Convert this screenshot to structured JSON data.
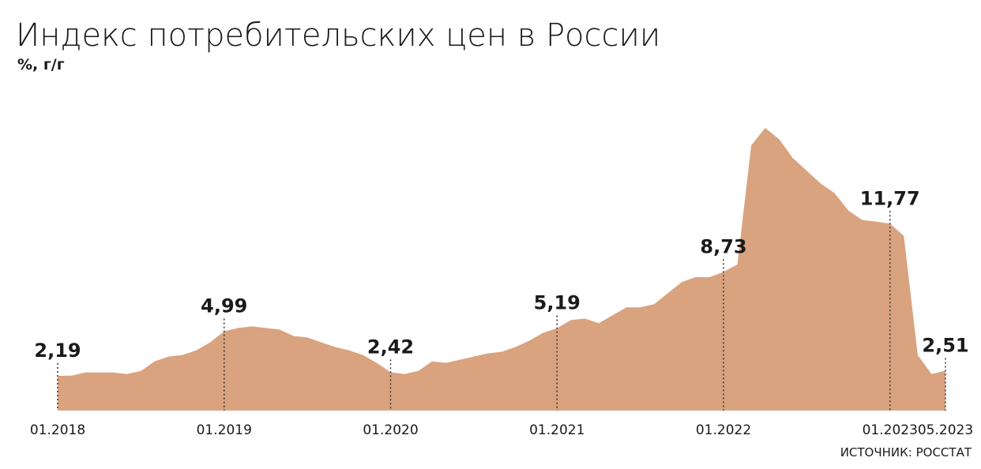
{
  "chart_data": {
    "type": "area",
    "title": "Индекс потребительских цен в России",
    "subtitle": "%, г/г",
    "source": "ИСТОЧНИК: РОССТАТ",
    "color": "#d9a37f",
    "categories": [
      "01.2018",
      null,
      null,
      null,
      null,
      null,
      null,
      null,
      null,
      null,
      null,
      null,
      "01.2019",
      null,
      null,
      null,
      null,
      null,
      null,
      null,
      null,
      null,
      null,
      null,
      "01.2020",
      null,
      null,
      null,
      null,
      null,
      null,
      null,
      null,
      null,
      null,
      null,
      "01.2021",
      null,
      null,
      null,
      null,
      null,
      null,
      null,
      null,
      null,
      null,
      null,
      "01.2022",
      null,
      null,
      null,
      null,
      null,
      null,
      null,
      null,
      null,
      null,
      null,
      "01.2023",
      null,
      null,
      null,
      "05.2023"
    ],
    "values": [
      2.19,
      2.2,
      2.4,
      2.4,
      2.4,
      2.3,
      2.5,
      3.1,
      3.4,
      3.5,
      3.8,
      4.3,
      4.99,
      5.2,
      5.3,
      5.2,
      5.1,
      4.7,
      4.6,
      4.3,
      4.0,
      3.8,
      3.5,
      3.0,
      2.42,
      2.3,
      2.5,
      3.1,
      3.0,
      3.2,
      3.4,
      3.6,
      3.7,
      4.0,
      4.4,
      4.9,
      5.19,
      5.7,
      5.8,
      5.5,
      6.0,
      6.5,
      6.5,
      6.7,
      7.4,
      8.1,
      8.4,
      8.4,
      8.73,
      9.2,
      16.7,
      17.8,
      17.1,
      15.9,
      15.1,
      14.3,
      13.7,
      12.6,
      12.0,
      11.9,
      11.77,
      11.0,
      3.5,
      2.3,
      2.51
    ],
    "value_labels": [
      "2,19",
      null,
      null,
      null,
      null,
      null,
      null,
      null,
      null,
      null,
      null,
      null,
      "4,99",
      null,
      null,
      null,
      null,
      null,
      null,
      null,
      null,
      null,
      null,
      null,
      "2,42",
      null,
      null,
      null,
      null,
      null,
      null,
      null,
      null,
      null,
      null,
      null,
      "5,19",
      null,
      null,
      null,
      null,
      null,
      null,
      null,
      null,
      null,
      null,
      null,
      "8,73",
      null,
      null,
      null,
      null,
      null,
      null,
      null,
      null,
      null,
      null,
      null,
      "11,77",
      null,
      null,
      null,
      "2,51"
    ]
  }
}
